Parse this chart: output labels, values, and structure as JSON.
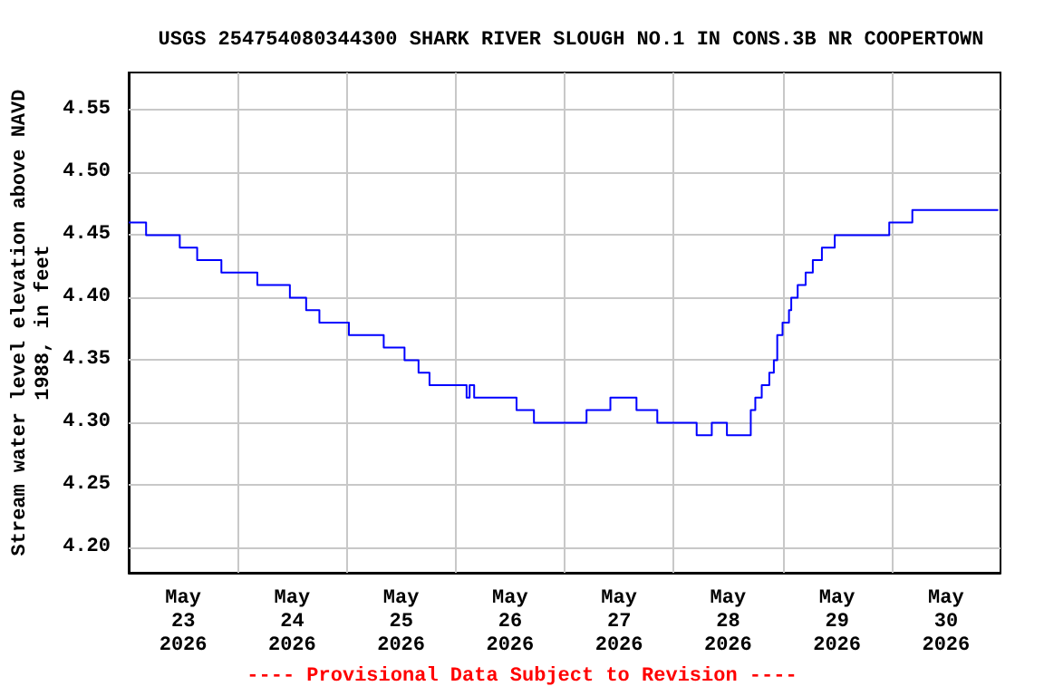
{
  "chart_data": {
    "type": "step",
    "title": "USGS 254754080344300 SHARK RIVER SLOUGH NO.1 IN CONS.3B NR COOPERTOWN",
    "ylabel": "Stream water level elevation above NAVD\n1988, in feet",
    "annotations": [
      "---- Provisional Data Subject to Revision ----"
    ],
    "x": [
      "2026-05-23T00:00",
      "2026-05-23T03:50",
      "2026-05-23T11:15",
      "2026-05-23T15:05",
      "2026-05-23T20:25",
      "2026-05-24T04:20",
      "2026-05-24T11:30",
      "2026-05-24T15:05",
      "2026-05-24T18:00",
      "2026-05-25T00:30",
      "2026-05-25T08:10",
      "2026-05-25T12:45",
      "2026-05-25T15:50",
      "2026-05-25T18:15",
      "2026-05-26T02:25",
      "2026-05-26T03:05",
      "2026-05-26T04:05",
      "2026-05-26T13:25",
      "2026-05-26T17:15",
      "2026-05-27T04:50",
      "2026-05-27T10:05",
      "2026-05-27T15:50",
      "2026-05-27T20:25",
      "2026-05-28T05:05",
      "2026-05-28T08:25",
      "2026-05-28T11:45",
      "2026-05-28T17:00",
      "2026-05-28T18:00",
      "2026-05-28T19:25",
      "2026-05-28T21:05",
      "2026-05-28T22:05",
      "2026-05-28T22:50",
      "2026-05-29T00:00",
      "2026-05-29T01:25",
      "2026-05-29T01:55",
      "2026-05-29T03:20",
      "2026-05-29T05:05",
      "2026-05-29T06:40",
      "2026-05-29T08:40",
      "2026-05-29T11:30",
      "2026-05-29T23:30",
      "2026-05-30T04:35",
      "2026-05-30T23:30"
    ],
    "series": [
      {
        "color": "#0000ff",
        "values": [
          4.46,
          4.45,
          4.44,
          4.43,
          4.42,
          4.41,
          4.4,
          4.39,
          4.38,
          4.37,
          4.36,
          4.35,
          4.34,
          4.33,
          4.32,
          4.33,
          4.32,
          4.31,
          4.3,
          4.31,
          4.32,
          4.31,
          4.3,
          4.29,
          4.3,
          4.29,
          4.31,
          4.32,
          4.33,
          4.34,
          4.35,
          4.37,
          4.38,
          4.39,
          4.4,
          4.41,
          4.42,
          4.43,
          4.44,
          4.45,
          4.46,
          4.47,
          4.47
        ]
      }
    ],
    "xlim": [
      "2026-05-23T00:00",
      "2026-05-31T00:00"
    ],
    "xticks": [
      {
        "value": "2026-05-23T12:00",
        "label": "May\n23\n2026"
      },
      {
        "value": "2026-05-24T00:00",
        "label": null
      },
      {
        "value": "2026-05-24T12:00",
        "label": "May\n24\n2026"
      },
      {
        "value": "2026-05-25T00:00",
        "label": null
      },
      {
        "value": "2026-05-25T12:00",
        "label": "May\n25\n2026"
      },
      {
        "value": "2026-05-26T00:00",
        "label": null
      },
      {
        "value": "2026-05-26T12:00",
        "label": "May\n26\n2026"
      },
      {
        "value": "2026-05-27T00:00",
        "label": null
      },
      {
        "value": "2026-05-27T12:00",
        "label": "May\n27\n2026"
      },
      {
        "value": "2026-05-28T00:00",
        "label": null
      },
      {
        "value": "2026-05-28T12:00",
        "label": "May\n28\n2026"
      },
      {
        "value": "2026-05-29T00:00",
        "label": null
      },
      {
        "value": "2026-05-29T12:00",
        "label": "May\n29\n2026"
      },
      {
        "value": "2026-05-30T00:00",
        "label": null
      },
      {
        "value": "2026-05-30T12:00",
        "label": "May\n30\n2026"
      }
    ],
    "ylim": [
      4.18,
      4.58
    ],
    "yticks": [
      {
        "value": 4.2,
        "label": "4.20"
      },
      {
        "value": 4.25,
        "label": "4.25"
      },
      {
        "value": 4.3,
        "label": "4.30"
      },
      {
        "value": 4.35,
        "label": "4.35"
      },
      {
        "value": 4.4,
        "label": "4.40"
      },
      {
        "value": 4.45,
        "label": "4.45"
      },
      {
        "value": 4.5,
        "label": "4.50"
      },
      {
        "value": 4.55,
        "label": "4.55"
      }
    ],
    "grid": true,
    "marker": "none",
    "line_style": "solid"
  }
}
